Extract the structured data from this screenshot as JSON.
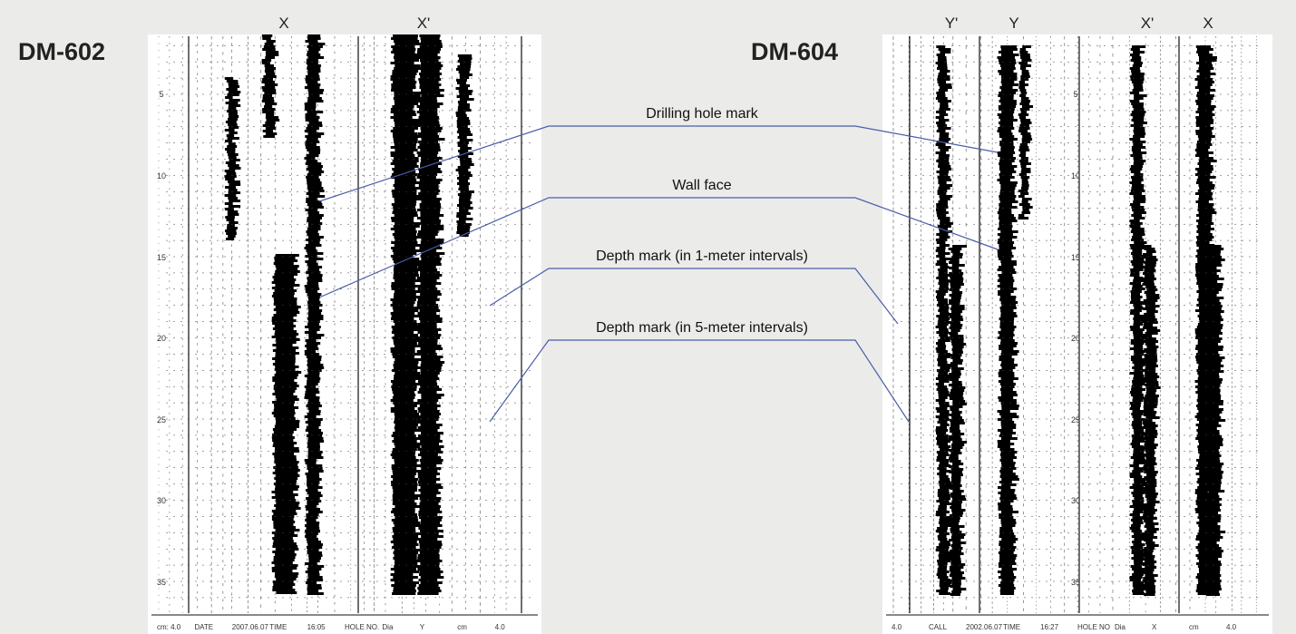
{
  "panels": [
    {
      "name": "DM-602",
      "columns": [
        "X",
        "X'"
      ],
      "depth_labels": [
        "5",
        "10",
        "15",
        "20",
        "25",
        "30",
        "35"
      ],
      "footer": [
        "cm: 4.0",
        "DATE",
        "2007.06.07",
        "TIME",
        "16:05",
        "HOLE NO.",
        "Dia",
        "Y",
        "cm",
        "4.0"
      ]
    },
    {
      "name": "DM-604",
      "columns": [
        "Y'",
        "Y",
        "X'",
        "X"
      ],
      "depth_labels": [
        "5",
        "10",
        "15",
        "20",
        "25",
        "30",
        "35"
      ],
      "footer": [
        "4.0",
        "CALL",
        "2002.06.07",
        "TIME",
        "16:27",
        "HOLE NO",
        "Dia",
        "X",
        "cm",
        "4.0"
      ]
    }
  ],
  "annotations": [
    "Drilling hole mark",
    "Wall face",
    "Depth mark (in 1-meter intervals)",
    "Depth mark (in 5-meter intervals)"
  ]
}
